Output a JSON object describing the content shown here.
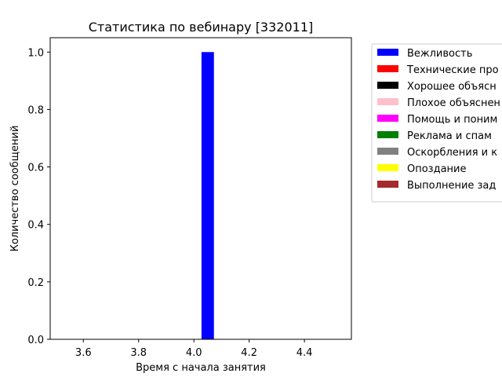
{
  "chart_data": {
    "type": "bar",
    "title": "Статистика по вебинару [332011]",
    "xlabel": "Время с начала занятия",
    "ylabel": "Количество сообщений",
    "xlim": [
      3.48,
      4.57
    ],
    "ylim": [
      0,
      1.05
    ],
    "x_ticks": [
      3.6,
      3.8,
      4.0,
      4.2,
      4.4
    ],
    "x_tick_labels": [
      "3.6",
      "3.8",
      "4.0",
      "4.2",
      "4.4"
    ],
    "y_ticks": [
      0.0,
      0.2,
      0.4,
      0.6,
      0.8,
      1.0
    ],
    "y_tick_labels": [
      "0.0",
      "0.2",
      "0.4",
      "0.6",
      "0.8",
      "1.0"
    ],
    "bar_width": 0.045,
    "grid": false,
    "legend_position": "outside right",
    "series": [
      {
        "name": "Вежливость",
        "color": "#0000ff",
        "points": [
          {
            "x": 4.05,
            "y": 1.0
          }
        ]
      },
      {
        "name": "Технические про",
        "color": "#ff0000",
        "points": []
      },
      {
        "name": "Хорошее объясн",
        "color": "#000000",
        "points": []
      },
      {
        "name": "Плохое объяснен",
        "color": "#ffc0cb",
        "points": []
      },
      {
        "name": "Помощь и поним",
        "color": "#ff00ff",
        "points": []
      },
      {
        "name": "Реклама и спам",
        "color": "#008000",
        "points": []
      },
      {
        "name": "Оскорбления и к",
        "color": "#808080",
        "points": []
      },
      {
        "name": "Опоздание",
        "color": "#ffff00",
        "points": []
      },
      {
        "name": "Выполнение зад",
        "color": "#a52a2a",
        "points": []
      }
    ]
  }
}
